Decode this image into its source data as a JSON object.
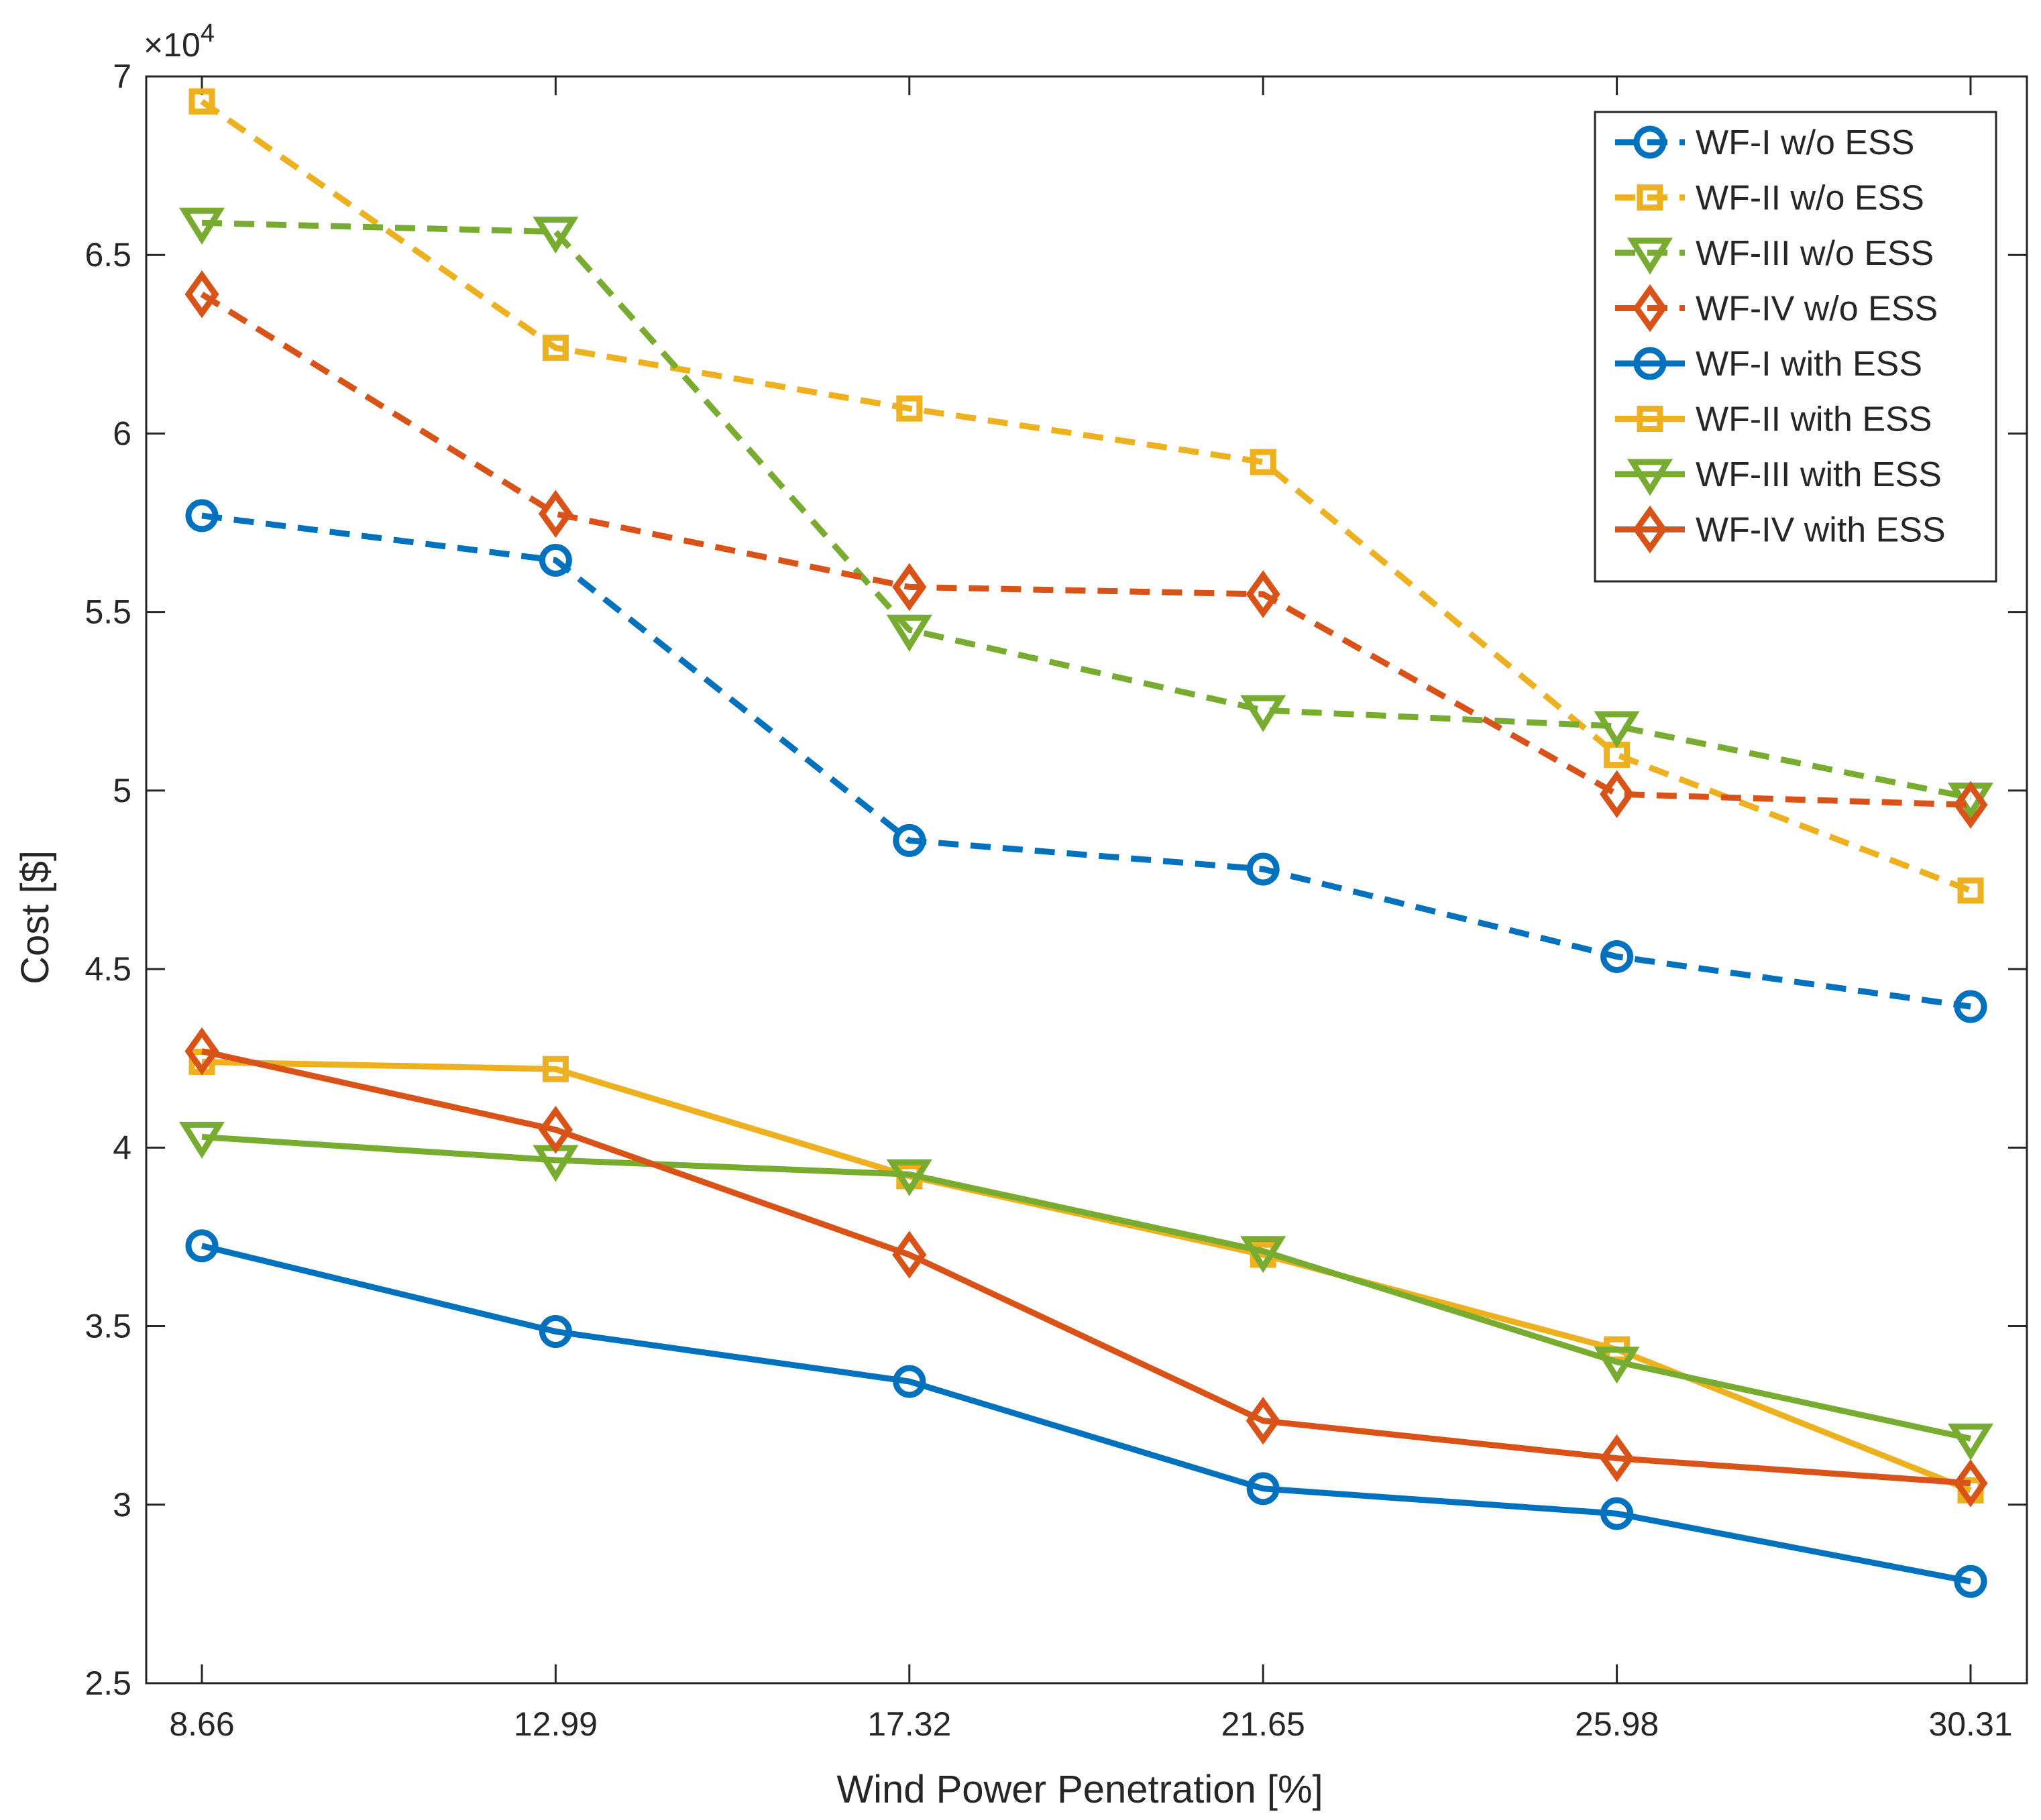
{
  "chart_data": {
    "type": "line",
    "title": "",
    "xlabel": "Wind Power Penetration [%]",
    "ylabel": "Cost [$]",
    "y_exponent_label": "×10",
    "y_exponent_power": "4",
    "x": [
      "8.66",
      "12.99",
      "17.32",
      "21.65",
      "25.98",
      "30.31"
    ],
    "ylim": [
      2.5,
      7
    ],
    "yticks": [
      "2.5",
      "3",
      "3.5",
      "4",
      "4.5",
      "5",
      "5.5",
      "6",
      "6.5",
      "7"
    ],
    "legend_position": "top-right",
    "series": [
      {
        "name": "WF-I w/o ESS",
        "color": "#0072BD",
        "marker": "circle",
        "dash": true,
        "values": [
          5.77,
          5.645,
          4.86,
          4.78,
          4.535,
          4.395
        ]
      },
      {
        "name": "WF-II w/o ESS",
        "color": "#EDB120",
        "marker": "square",
        "dash": true,
        "values": [
          6.93,
          6.24,
          6.07,
          5.92,
          5.1,
          4.72
        ]
      },
      {
        "name": "WF-III w/o ESS",
        "color": "#77AC30",
        "marker": "triangle-down",
        "dash": true,
        "values": [
          6.59,
          6.565,
          5.45,
          5.225,
          5.18,
          4.98
        ]
      },
      {
        "name": "WF-IV w/o ESS",
        "color": "#D95319",
        "marker": "diamond",
        "dash": true,
        "values": [
          6.39,
          5.775,
          5.57,
          5.55,
          4.99,
          4.96
        ]
      },
      {
        "name": "WF-I with ESS",
        "color": "#0072BD",
        "marker": "circle",
        "dash": false,
        "values": [
          3.725,
          3.485,
          3.345,
          3.045,
          2.975,
          2.785
        ]
      },
      {
        "name": "WF-II with ESS",
        "color": "#EDB120",
        "marker": "square",
        "dash": false,
        "values": [
          4.24,
          4.22,
          3.92,
          3.7,
          3.435,
          3.04
        ]
      },
      {
        "name": "WF-III with ESS",
        "color": "#77AC30",
        "marker": "triangle-down",
        "dash": false,
        "values": [
          4.03,
          3.965,
          3.925,
          3.71,
          3.4,
          3.185
        ]
      },
      {
        "name": "WF-IV with ESS",
        "color": "#D95319",
        "marker": "diamond",
        "dash": false,
        "values": [
          4.27,
          4.05,
          3.7,
          3.235,
          3.13,
          3.06
        ]
      }
    ]
  }
}
